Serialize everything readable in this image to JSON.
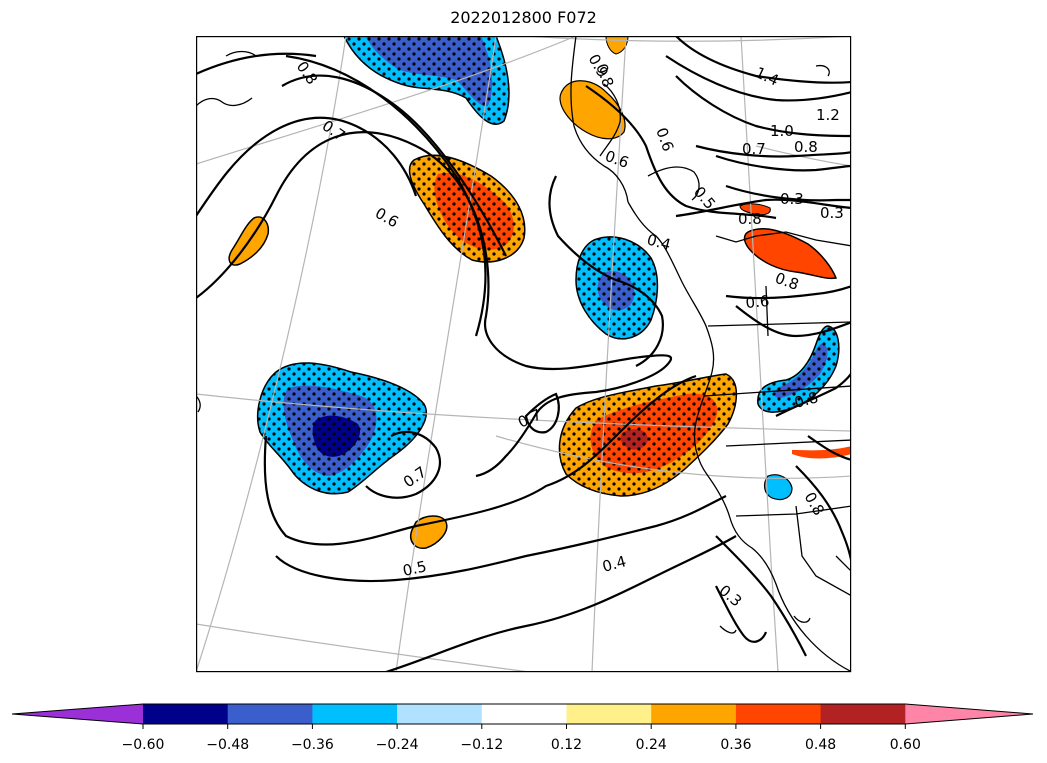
{
  "title": "2022012800 F072",
  "colors": {
    "background": "#ffffff",
    "grid": "#b5b5b5",
    "contour": "#000000",
    "coast": "#000000"
  },
  "colorbar": {
    "extend": "both",
    "under_color": "#9b30d9",
    "over_color": "#ff85a8",
    "bins": [
      {
        "from": -0.6,
        "to": -0.48,
        "color": "#00008b"
      },
      {
        "from": -0.48,
        "to": -0.36,
        "color": "#3a5fcd"
      },
      {
        "from": -0.36,
        "to": -0.24,
        "color": "#00bfff"
      },
      {
        "from": -0.24,
        "to": -0.12,
        "color": "#b0e2ff"
      },
      {
        "from": -0.12,
        "to": 0.12,
        "color": "#ffffff"
      },
      {
        "from": 0.12,
        "to": 0.24,
        "color": "#fff08a"
      },
      {
        "from": 0.24,
        "to": 0.36,
        "color": "#ffa500"
      },
      {
        "from": 0.36,
        "to": 0.48,
        "color": "#ff4500"
      },
      {
        "from": 0.48,
        "to": 0.6,
        "color": "#b22222"
      }
    ],
    "tick_labels": [
      "−0.60",
      "−0.48",
      "−0.36",
      "−0.24",
      "−0.12",
      "0.12",
      "0.24",
      "0.36",
      "0.48",
      "0.60"
    ]
  },
  "contour_labels": [
    "0.8",
    "0.7",
    "0.6",
    "0.7",
    "0.7",
    "0.5",
    "0.4",
    "0.3",
    "0.6",
    "0.4",
    "0.8",
    "0.7",
    "1.0",
    "0.8",
    "1.2",
    "1.4",
    "0.3",
    "0.3",
    "0.5",
    "0.8",
    "0.6",
    "0.8",
    "0.8",
    "0.6",
    "0.9",
    "0.8"
  ],
  "filled_regions": [
    {
      "name": "northwest-negative-lobe",
      "level": "-0.36 to -0.48",
      "stippled": true
    },
    {
      "name": "northwest-central-positive",
      "level": "0.36 to 0.48",
      "stippled": true
    },
    {
      "name": "small-west-positive",
      "level": "0.24 to 0.36",
      "stippled": false
    },
    {
      "name": "coastal-negative",
      "level": "-0.36 to -0.48",
      "stippled": true
    },
    {
      "name": "west-strong-negative",
      "level": "below -0.48",
      "stippled": true
    },
    {
      "name": "south-central-positive",
      "level": "0.48 to 0.60",
      "stippled": true
    },
    {
      "name": "small-south-positive",
      "level": "0.24 to 0.36",
      "stippled": false
    },
    {
      "name": "east-negative-band",
      "level": "-0.36 to -0.48",
      "stippled": true
    },
    {
      "name": "northeast-positive",
      "level": "0.36 to 0.48",
      "stippled": false
    },
    {
      "name": "north-coast-positive",
      "level": "0.24 to 0.36",
      "stippled": false
    }
  ]
}
